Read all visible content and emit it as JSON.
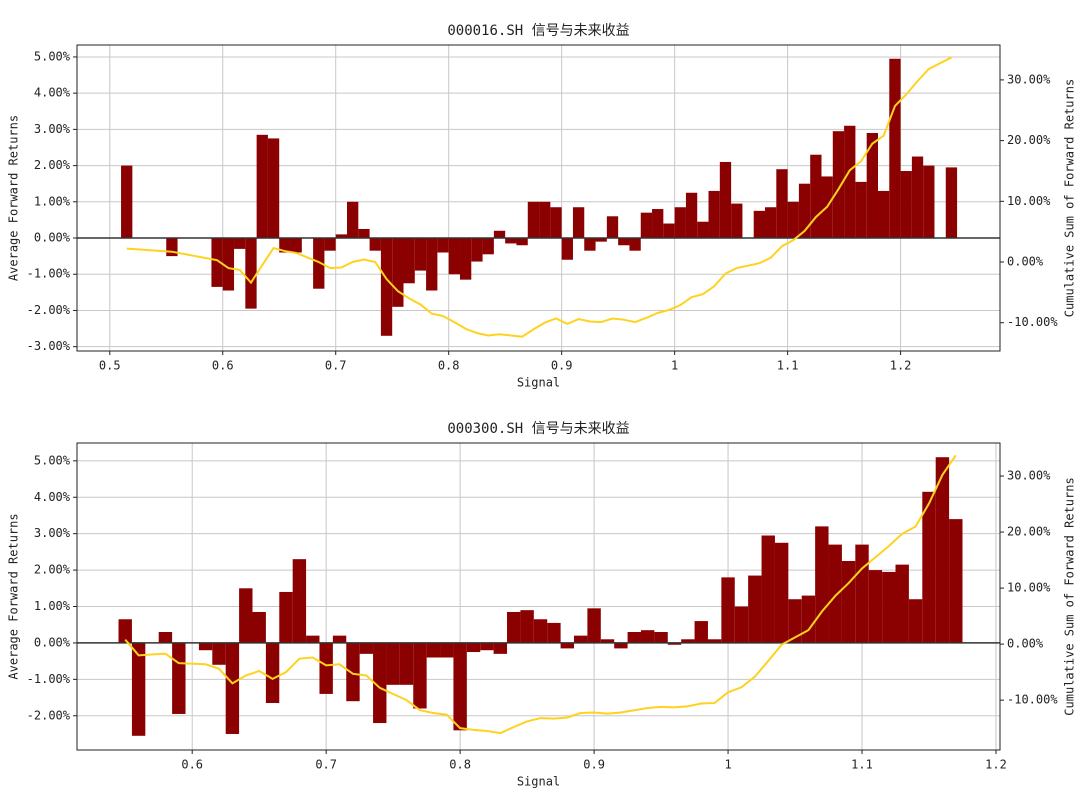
{
  "chart_data": [
    {
      "type": "bar",
      "title": "000016.SH 信号与未来收益",
      "xlabel": "Signal",
      "ylabel": "Average Forward Returns",
      "y2label": "Cumulative Sum of Forward Returns",
      "grid": true,
      "xlim": [
        0.471,
        1.288
      ],
      "xticks": [
        0.5,
        0.6,
        0.7,
        0.8,
        0.9,
        1.0,
        1.1,
        1.2
      ],
      "ylim": [
        -3.12,
        5.33
      ],
      "yticks": [
        {
          "value": -3,
          "label": "-3.00%"
        },
        {
          "value": -2,
          "label": "-2.00%"
        },
        {
          "value": -1,
          "label": "-1.00%"
        },
        {
          "value": 0,
          "label": "0.00%"
        },
        {
          "value": 1,
          "label": "1.00%"
        },
        {
          "value": 2,
          "label": "2.00%"
        },
        {
          "value": 3,
          "label": "3.00%"
        },
        {
          "value": 4,
          "label": "4.00%"
        },
        {
          "value": 5,
          "label": "5.00%"
        }
      ],
      "y2lim": [
        -14.66,
        35.75
      ],
      "y2ticks": [
        {
          "value": -10,
          "label": "-10.00%"
        },
        {
          "value": 0,
          "label": "0.00%"
        },
        {
          "value": 10,
          "label": "10.00%"
        },
        {
          "value": 20,
          "label": "20.00%"
        },
        {
          "value": 30,
          "label": "30.00%"
        }
      ],
      "x": [
        0.515,
        0.555,
        0.595,
        0.605,
        0.615,
        0.625,
        0.635,
        0.645,
        0.655,
        0.665,
        0.685,
        0.695,
        0.705,
        0.715,
        0.725,
        0.735,
        0.745,
        0.755,
        0.765,
        0.775,
        0.785,
        0.795,
        0.805,
        0.815,
        0.825,
        0.835,
        0.845,
        0.855,
        0.865,
        0.875,
        0.885,
        0.895,
        0.905,
        0.915,
        0.925,
        0.935,
        0.945,
        0.955,
        0.965,
        0.975,
        0.985,
        0.995,
        1.005,
        1.015,
        1.025,
        1.035,
        1.045,
        1.055,
        1.075,
        1.085,
        1.095,
        1.105,
        1.115,
        1.125,
        1.135,
        1.145,
        1.155,
        1.165,
        1.175,
        1.185,
        1.195,
        1.205,
        1.215,
        1.225,
        1.245
      ],
      "series": [
        {
          "type": "bar",
          "color": "#8b0000",
          "values": [
            2.0,
            -0.5,
            -1.35,
            -1.45,
            -0.3,
            -1.95,
            2.85,
            2.75,
            -0.4,
            -0.4,
            -1.4,
            -0.35,
            0.1,
            1.0,
            0.25,
            -0.35,
            -2.7,
            -1.9,
            -1.25,
            -0.9,
            -1.45,
            -0.4,
            -1.0,
            -1.15,
            -0.65,
            -0.45,
            0.2,
            -0.15,
            -0.2,
            1.0,
            1.0,
            0.85,
            -0.6,
            0.85,
            -0.35,
            -0.1,
            0.6,
            -0.2,
            -0.35,
            0.7,
            0.8,
            0.4,
            0.85,
            1.25,
            0.45,
            1.3,
            2.1,
            0.95,
            0.75,
            0.85,
            1.9,
            1.0,
            1.5,
            2.3,
            1.7,
            2.95,
            3.1,
            1.55,
            2.9,
            1.3,
            4.95,
            1.85,
            2.25,
            2.0,
            1.95
          ]
        },
        {
          "type": "line",
          "axis": "y2",
          "color": "#ffd21f",
          "values": [
            2.2,
            1.7,
            0.3,
            -1.0,
            -1.3,
            -3.4,
            -0.5,
            2.3,
            1.8,
            1.5,
            0.0,
            -1.0,
            -0.9,
            0.0,
            0.4,
            0.0,
            -2.8,
            -4.8,
            -6.0,
            -7.0,
            -8.5,
            -8.9,
            -9.9,
            -11.0,
            -11.7,
            -12.1,
            -11.9,
            -12.1,
            -12.3,
            -11.1,
            -10.0,
            -9.3,
            -10.2,
            -9.4,
            -9.8,
            -9.9,
            -9.3,
            -9.5,
            -9.9,
            -9.2,
            -8.4,
            -7.9,
            -7.1,
            -5.8,
            -5.3,
            -4.0,
            -1.9,
            -1.0,
            -0.2,
            0.7,
            2.6,
            3.6,
            5.1,
            7.4,
            9.1,
            12.0,
            15.1,
            16.6,
            19.5,
            20.8,
            25.7,
            27.6,
            29.8,
            31.8,
            33.7
          ]
        }
      ]
    },
    {
      "type": "bar",
      "title": "000300.SH 信号与未来收益",
      "xlabel": "Signal",
      "ylabel": "Average Forward Returns",
      "y2label": "Cumulative Sum of Forward Returns",
      "grid": true,
      "xlim": [
        0.514,
        1.203
      ],
      "xticks": [
        0.6,
        0.7,
        0.8,
        0.9,
        1.0,
        1.1,
        1.2
      ],
      "ylim": [
        -2.94,
        5.49
      ],
      "yticks": [
        {
          "value": -2,
          "label": "-2.00%"
        },
        {
          "value": -1,
          "label": "-1.00%"
        },
        {
          "value": 0,
          "label": "0.00%"
        },
        {
          "value": 1,
          "label": "1.00%"
        },
        {
          "value": 2,
          "label": "2.00%"
        },
        {
          "value": 3,
          "label": "3.00%"
        },
        {
          "value": 4,
          "label": "4.00%"
        },
        {
          "value": 5,
          "label": "5.00%"
        }
      ],
      "y2lim": [
        -18.9,
        35.9
      ],
      "y2ticks": [
        {
          "value": -10,
          "label": "-10.00%"
        },
        {
          "value": 0,
          "label": "0.00%"
        },
        {
          "value": 10,
          "label": "10.00%"
        },
        {
          "value": 20,
          "label": "20.00%"
        },
        {
          "value": 30,
          "label": "30.00%"
        }
      ],
      "x": [
        0.55,
        0.56,
        0.58,
        0.59,
        0.61,
        0.62,
        0.63,
        0.64,
        0.65,
        0.66,
        0.67,
        0.68,
        0.69,
        0.7,
        0.71,
        0.72,
        0.73,
        0.74,
        0.75,
        0.76,
        0.77,
        0.78,
        0.79,
        0.8,
        0.81,
        0.82,
        0.83,
        0.84,
        0.85,
        0.86,
        0.87,
        0.88,
        0.89,
        0.9,
        0.91,
        0.92,
        0.93,
        0.94,
        0.95,
        0.96,
        0.97,
        0.98,
        0.99,
        1.0,
        1.01,
        1.02,
        1.03,
        1.04,
        1.05,
        1.06,
        1.07,
        1.08,
        1.09,
        1.1,
        1.11,
        1.12,
        1.13,
        1.14,
        1.15,
        1.16,
        1.17
      ],
      "series": [
        {
          "type": "bar",
          "color": "#8b0000",
          "values": [
            0.65,
            -2.55,
            0.3,
            -1.95,
            -0.2,
            -0.6,
            -2.5,
            1.5,
            0.85,
            -1.65,
            1.4,
            2.3,
            0.2,
            -1.4,
            0.2,
            -1.6,
            -0.3,
            -2.2,
            -1.15,
            -1.15,
            -1.8,
            -0.4,
            -0.4,
            -2.4,
            -0.25,
            -0.2,
            -0.3,
            0.85,
            0.9,
            0.65,
            0.55,
            -0.15,
            0.2,
            0.95,
            0.1,
            -0.15,
            0.3,
            0.35,
            0.3,
            -0.05,
            0.1,
            0.6,
            0.1,
            1.8,
            1.0,
            1.85,
            2.95,
            2.75,
            1.2,
            1.3,
            3.2,
            2.7,
            2.25,
            2.7,
            2.0,
            1.95,
            2.15,
            1.2,
            4.15,
            5.1,
            3.4
          ]
        },
        {
          "type": "line",
          "axis": "y2",
          "color": "#ffd21f",
          "values": [
            0.8,
            -2.0,
            -1.7,
            -3.4,
            -3.6,
            -4.4,
            -7.0,
            -5.6,
            -4.8,
            -6.2,
            -5.0,
            -2.6,
            -2.4,
            -3.8,
            -3.6,
            -5.3,
            -5.6,
            -7.8,
            -8.9,
            -10.0,
            -11.8,
            -12.3,
            -12.6,
            -15.0,
            -15.3,
            -15.5,
            -15.9,
            -14.8,
            -13.8,
            -13.2,
            -13.3,
            -13.1,
            -12.3,
            -12.2,
            -12.4,
            -12.2,
            -11.8,
            -11.4,
            -11.2,
            -11.3,
            -11.1,
            -10.6,
            -10.5,
            -8.6,
            -7.7,
            -5.8,
            -3.0,
            -0.1,
            1.2,
            2.5,
            5.8,
            8.6,
            10.9,
            13.5,
            15.5,
            17.5,
            19.7,
            21.0,
            25.1,
            30.2,
            33.7
          ]
        }
      ]
    }
  ]
}
